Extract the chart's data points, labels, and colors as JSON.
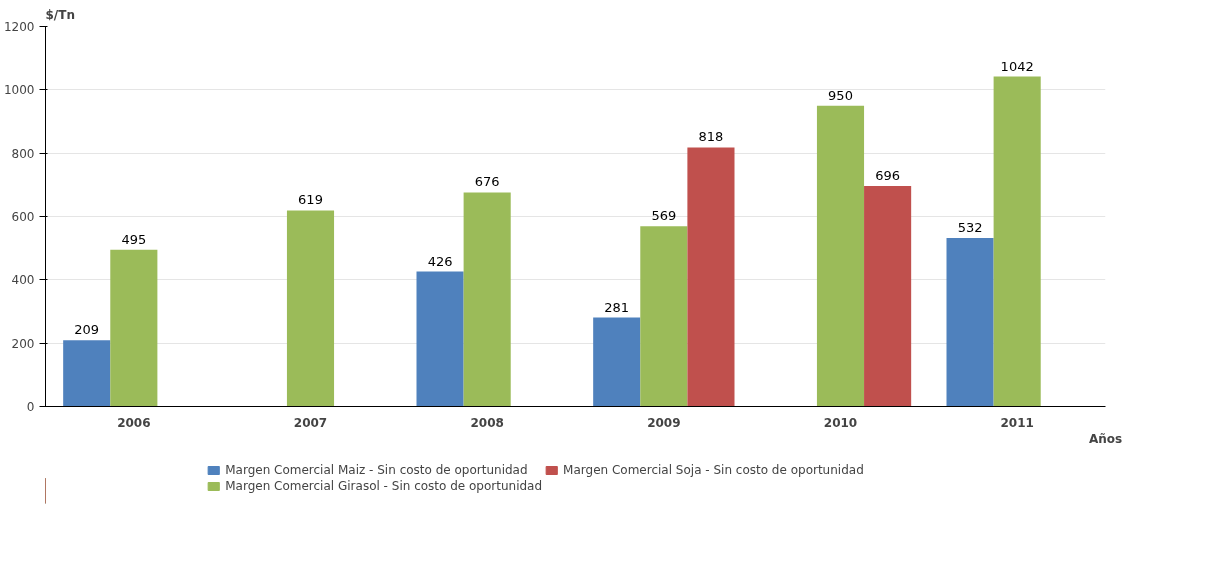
{
  "chart_data": {
    "type": "bar",
    "ylabel": "$/Tn",
    "xlabel": "Años",
    "categories": [
      "2006",
      "2007",
      "2008",
      "2009",
      "2010",
      "2011"
    ],
    "series": [
      {
        "name": "Margen Comercial Maiz - Sin costo de oportunidad",
        "color": "#4f81bd",
        "values": [
          209,
          null,
          426,
          281,
          null,
          532
        ]
      },
      {
        "name": "Margen Comercial Girasol - Sin costo de oportunidad",
        "color": "#9bbb59",
        "values": [
          495,
          619,
          676,
          569,
          950,
          1042
        ]
      },
      {
        "name": "Margen Comercial Soja - Sin costo de oportunidad",
        "color": "#c0504d",
        "values": [
          null,
          null,
          null,
          818,
          696,
          null
        ]
      }
    ],
    "ylim": [
      0,
      1200
    ],
    "yticks": [
      0,
      200,
      400,
      600,
      800,
      1000,
      1200
    ],
    "grid": "y",
    "legend": "bottom",
    "data_labels": true
  }
}
